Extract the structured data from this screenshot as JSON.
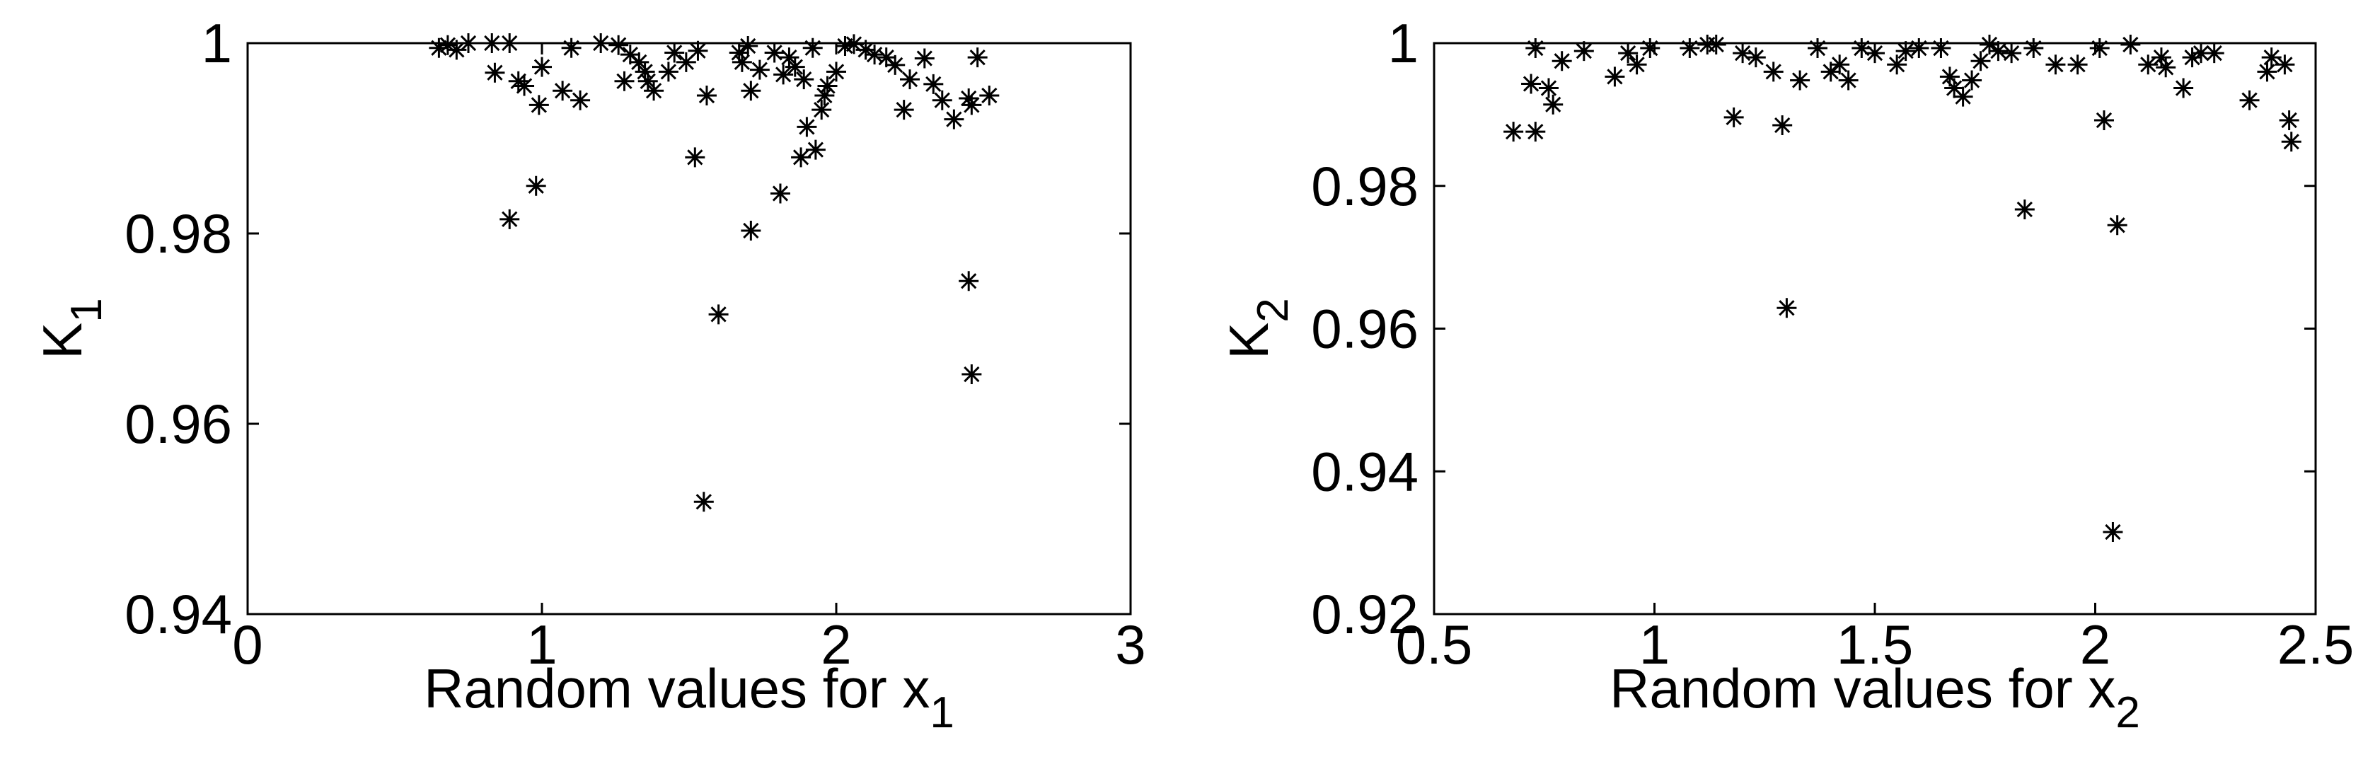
{
  "chart_data": [
    {
      "type": "scatter",
      "color": "#000000",
      "xlabel": {
        "text": "Random values for x",
        "subscript": "1"
      },
      "ylabel": {
        "text": "K",
        "subscript": "1"
      },
      "xlim": [
        0,
        3
      ],
      "xticks": [
        0,
        1,
        2,
        3
      ],
      "ylim": [
        0.94,
        1
      ],
      "yticks": [
        0.94,
        0.96,
        0.98,
        1
      ],
      "x": [
        0.65,
        0.68,
        0.75,
        0.83,
        0.71,
        0.84,
        0.89,
        0.92,
        0.94,
        0.99,
        1.0,
        1.07,
        1.13,
        1.1,
        1.2,
        1.26,
        1.28,
        1.3,
        1.33,
        1.35,
        1.36,
        1.38,
        1.43,
        1.45,
        1.49,
        1.53,
        1.56,
        1.67,
        1.68,
        1.7,
        1.71,
        1.74,
        1.79,
        1.82,
        1.84,
        1.86,
        1.89,
        1.92,
        1.95,
        1.96,
        1.97,
        2.0,
        2.03,
        2.06,
        2.1,
        2.13,
        2.17,
        2.2,
        2.23,
        2.25,
        2.3,
        2.33,
        2.36,
        2.45,
        2.46,
        2.48,
        2.52,
        2.4,
        1.52,
        0.89,
        0.98,
        1.55,
        1.6,
        1.71,
        1.81,
        1.88,
        1.9,
        1.93,
        2.45,
        2.46
      ],
      "values": [
        0.9995,
        0.9998,
        1.0,
        1.0,
        0.9993,
        0.9969,
        1.0,
        0.996,
        0.9955,
        0.9935,
        0.9975,
        0.995,
        0.994,
        0.9995,
        1.0,
        0.9998,
        0.996,
        0.9988,
        0.998,
        0.997,
        0.996,
        0.995,
        0.997,
        0.999,
        0.998,
        0.9992,
        0.9945,
        0.999,
        0.998,
        0.9997,
        0.995,
        0.9972,
        0.999,
        0.9967,
        0.9985,
        0.9975,
        0.9962,
        0.9995,
        0.993,
        0.9945,
        0.9955,
        0.997,
        0.9997,
        0.9999,
        0.9993,
        0.9988,
        0.9985,
        0.9977,
        0.993,
        0.9962,
        0.9984,
        0.9957,
        0.994,
        0.9942,
        0.9935,
        0.9985,
        0.9945,
        0.992,
        0.988,
        0.9815,
        0.985,
        0.9518,
        0.9715,
        0.9803,
        0.9842,
        0.988,
        0.9912,
        0.9888,
        0.975,
        0.9652
      ]
    },
    {
      "type": "scatter",
      "color": "#000000",
      "xlabel": {
        "text": "Random values for x",
        "subscript": "2"
      },
      "ylabel": {
        "text": "K",
        "subscript": "2"
      },
      "xlim": [
        0.5,
        2.5
      ],
      "xticks": [
        0.5,
        1,
        1.5,
        2,
        2.5
      ],
      "ylim": [
        0.92,
        1
      ],
      "yticks": [
        0.92,
        0.94,
        0.96,
        0.98,
        1
      ],
      "x": [
        0.68,
        0.73,
        0.72,
        0.73,
        0.76,
        0.77,
        0.79,
        0.84,
        0.91,
        0.94,
        0.96,
        0.99,
        1.08,
        1.12,
        1.14,
        1.18,
        1.2,
        1.23,
        1.27,
        1.29,
        1.3,
        1.33,
        1.37,
        1.4,
        1.42,
        1.44,
        1.47,
        1.5,
        1.55,
        1.57,
        1.6,
        1.65,
        1.67,
        1.68,
        1.7,
        1.72,
        1.74,
        1.76,
        1.78,
        1.81,
        1.84,
        1.86,
        1.91,
        1.96,
        2.01,
        2.02,
        2.04,
        2.05,
        2.08,
        2.12,
        2.15,
        2.16,
        2.2,
        2.22,
        2.24,
        2.27,
        2.35,
        2.39,
        2.4,
        2.43,
        2.44,
        2.445
      ],
      "values": [
        0.9876,
        0.9876,
        0.9943,
        0.9993,
        0.9937,
        0.9914,
        0.9975,
        0.9989,
        0.9953,
        0.9986,
        0.997,
        0.9993,
        0.9993,
        0.9998,
        0.9998,
        0.9896,
        0.9986,
        0.998,
        0.996,
        0.9885,
        0.9629,
        0.9948,
        0.9993,
        0.996,
        0.997,
        0.9948,
        0.9993,
        0.9986,
        0.997,
        0.9989,
        0.9993,
        0.9993,
        0.9953,
        0.9937,
        0.9925,
        0.9948,
        0.9975,
        0.9998,
        0.9989,
        0.9986,
        0.9767,
        0.9993,
        0.997,
        0.997,
        0.9993,
        0.9892,
        0.9315,
        0.9745,
        0.9998,
        0.997,
        0.998,
        0.9966,
        0.9937,
        0.998,
        0.9986,
        0.9986,
        0.992,
        0.996,
        0.998,
        0.997,
        0.9892,
        0.9862
      ]
    }
  ]
}
